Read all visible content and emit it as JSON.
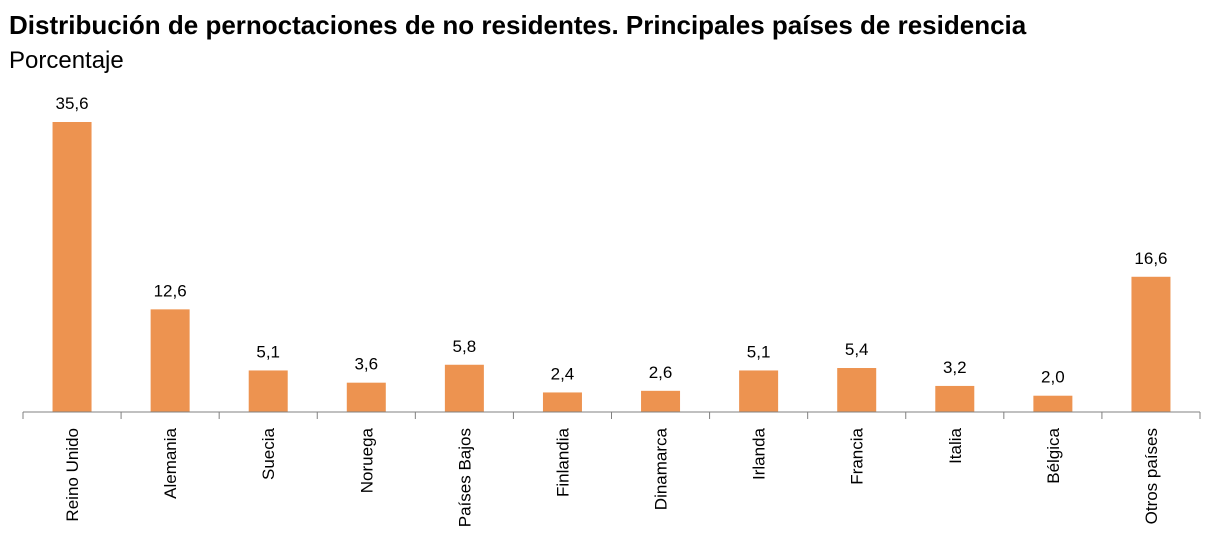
{
  "title": "Distribución de pernoctaciones de no residentes. Principales países de residencia",
  "subtitle": "Porcentaje",
  "colors": {
    "bar": "#ED9350",
    "axis": "#808080"
  },
  "chart_data": {
    "type": "bar",
    "title": "Distribución de pernoctaciones de no residentes. Principales países de residencia",
    "subtitle": "Porcentaje",
    "categories": [
      "Reino Unido",
      "Alemania",
      "Suecia",
      "Noruega",
      "Países Bajos",
      "Finlandia",
      "Dinamarca",
      "Irlanda",
      "Francia",
      "Italia",
      "Bélgica",
      "Otros países"
    ],
    "values": [
      35.6,
      12.6,
      5.1,
      3.6,
      5.8,
      2.4,
      2.6,
      5.1,
      5.4,
      3.2,
      2.0,
      16.6
    ],
    "value_labels": [
      "35,6",
      "12,6",
      "5,1",
      "3,6",
      "5,8",
      "2,4",
      "2,6",
      "5,1",
      "5,4",
      "3,2",
      "2,0",
      "16,6"
    ],
    "xlabel": "",
    "ylabel": "",
    "ylim": [
      0,
      35.6
    ],
    "grid": false,
    "legend": "none"
  }
}
